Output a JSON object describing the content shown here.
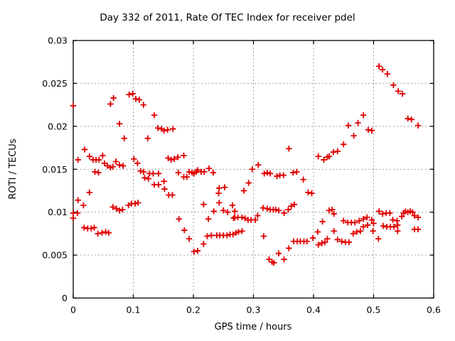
{
  "chart_data": {
    "type": "scatter",
    "title": "Day 332 of 2011, Rate Of TEC Index for receiver pdel",
    "xlabel": "GPS time / hours",
    "ylabel": "ROTI / TECUs",
    "xlim": [
      0,
      0.6
    ],
    "ylim": [
      0,
      0.03
    ],
    "x_ticks": [
      0,
      0.1,
      0.2,
      0.3,
      0.4,
      0.5,
      0.6
    ],
    "x_tick_labels": [
      "0",
      "0.1",
      "0.2",
      "0.3",
      "0.4",
      "0.5",
      "0.6"
    ],
    "y_ticks": [
      0,
      0.005,
      0.01,
      0.015,
      0.02,
      0.025,
      0.03
    ],
    "y_tick_labels": [
      "0",
      "0.005",
      "0.01",
      "0.015",
      "0.02",
      "0.025",
      "0.03"
    ],
    "grid": true,
    "legend": "none",
    "marker": "plus",
    "colors": {
      "marker": "#e00000",
      "grid": "#a0a0a0",
      "axis": "#000000",
      "background": "#ffffff"
    },
    "series": [
      {
        "name": "ROTI",
        "points": [
          [
            0.0,
            0.0224
          ],
          [
            0.0,
            0.0099
          ],
          [
            0.0,
            0.0093
          ],
          [
            0.007,
            0.0099
          ],
          [
            0.008,
            0.0114
          ],
          [
            0.008,
            0.0161
          ],
          [
            0.017,
            0.0108
          ],
          [
            0.019,
            0.0173
          ],
          [
            0.018,
            0.0082
          ],
          [
            0.024,
            0.0081
          ],
          [
            0.027,
            0.0123
          ],
          [
            0.027,
            0.0165
          ],
          [
            0.03,
            0.0081
          ],
          [
            0.035,
            0.0082
          ],
          [
            0.033,
            0.0161
          ],
          [
            0.036,
            0.0147
          ],
          [
            0.038,
            0.0161
          ],
          [
            0.042,
            0.0146
          ],
          [
            0.043,
            0.0161
          ],
          [
            0.041,
            0.0075
          ],
          [
            0.049,
            0.0166
          ],
          [
            0.048,
            0.0076
          ],
          [
            0.052,
            0.0157
          ],
          [
            0.054,
            0.0077
          ],
          [
            0.057,
            0.0154
          ],
          [
            0.059,
            0.0076
          ],
          [
            0.062,
            0.0152
          ],
          [
            0.062,
            0.0226
          ],
          [
            0.066,
            0.0153
          ],
          [
            0.067,
            0.0233
          ],
          [
            0.066,
            0.0106
          ],
          [
            0.071,
            0.0159
          ],
          [
            0.072,
            0.0104
          ],
          [
            0.077,
            0.0155
          ],
          [
            0.077,
            0.0203
          ],
          [
            0.077,
            0.0102
          ],
          [
            0.082,
            0.0103
          ],
          [
            0.083,
            0.0154
          ],
          [
            0.085,
            0.0186
          ],
          [
            0.092,
            0.0108
          ],
          [
            0.097,
            0.011
          ],
          [
            0.103,
            0.011
          ],
          [
            0.108,
            0.0111
          ],
          [
            0.093,
            0.0237
          ],
          [
            0.099,
            0.0238
          ],
          [
            0.104,
            0.0232
          ],
          [
            0.11,
            0.0231
          ],
          [
            0.101,
            0.0162
          ],
          [
            0.107,
            0.0157
          ],
          [
            0.112,
            0.0148
          ],
          [
            0.117,
            0.0147
          ],
          [
            0.117,
            0.0225
          ],
          [
            0.119,
            0.014
          ],
          [
            0.124,
            0.0186
          ],
          [
            0.125,
            0.0139
          ],
          [
            0.127,
            0.0145
          ],
          [
            0.133,
            0.0145
          ],
          [
            0.135,
            0.0132
          ],
          [
            0.135,
            0.0213
          ],
          [
            0.141,
            0.0198
          ],
          [
            0.142,
            0.0145
          ],
          [
            0.142,
            0.0132
          ],
          [
            0.147,
            0.0197
          ],
          [
            0.151,
            0.0195
          ],
          [
            0.151,
            0.0136
          ],
          [
            0.152,
            0.0127
          ],
          [
            0.157,
            0.0196
          ],
          [
            0.158,
            0.0163
          ],
          [
            0.159,
            0.012
          ],
          [
            0.163,
            0.0161
          ],
          [
            0.165,
            0.012
          ],
          [
            0.166,
            0.0197
          ],
          [
            0.168,
            0.0162
          ],
          [
            0.174,
            0.0164
          ],
          [
            0.175,
            0.0146
          ],
          [
            0.176,
            0.0092
          ],
          [
            0.184,
            0.0166
          ],
          [
            0.184,
            0.0141
          ],
          [
            0.185,
            0.0079
          ],
          [
            0.189,
            0.0141
          ],
          [
            0.193,
            0.0147
          ],
          [
            0.193,
            0.0069
          ],
          [
            0.198,
            0.0146
          ],
          [
            0.201,
            0.0145
          ],
          [
            0.201,
            0.0054
          ],
          [
            0.205,
            0.0147
          ],
          [
            0.207,
            0.0149
          ],
          [
            0.207,
            0.0055
          ],
          [
            0.213,
            0.0147
          ],
          [
            0.217,
            0.0063
          ],
          [
            0.217,
            0.0109
          ],
          [
            0.218,
            0.0147
          ],
          [
            0.223,
            0.0072
          ],
          [
            0.225,
            0.0092
          ],
          [
            0.226,
            0.0151
          ],
          [
            0.23,
            0.0073
          ],
          [
            0.233,
            0.0146
          ],
          [
            0.234,
            0.0101
          ],
          [
            0.239,
            0.0073
          ],
          [
            0.244,
            0.0073
          ],
          [
            0.242,
            0.0122
          ],
          [
            0.243,
            0.0128
          ],
          [
            0.243,
            0.0111
          ],
          [
            0.25,
            0.0073
          ],
          [
            0.25,
            0.0102
          ],
          [
            0.252,
            0.0129
          ],
          [
            0.256,
            0.0073
          ],
          [
            0.257,
            0.01
          ],
          [
            0.261,
            0.0074
          ],
          [
            0.265,
            0.0108
          ],
          [
            0.266,
            0.0074
          ],
          [
            0.267,
            0.0093
          ],
          [
            0.269,
            0.0101
          ],
          [
            0.269,
            0.0094
          ],
          [
            0.271,
            0.0076
          ],
          [
            0.274,
            0.0094
          ],
          [
            0.275,
            0.0077
          ],
          [
            0.281,
            0.0094
          ],
          [
            0.281,
            0.0078
          ],
          [
            0.284,
            0.0125
          ],
          [
            0.286,
            0.0093
          ],
          [
            0.291,
            0.0091
          ],
          [
            0.292,
            0.0134
          ],
          [
            0.296,
            0.0091
          ],
          [
            0.298,
            0.015
          ],
          [
            0.303,
            0.0091
          ],
          [
            0.307,
            0.0096
          ],
          [
            0.308,
            0.0155
          ],
          [
            0.316,
            0.0105
          ],
          [
            0.317,
            0.0072
          ],
          [
            0.318,
            0.0145
          ],
          [
            0.323,
            0.0146
          ],
          [
            0.323,
            0.0104
          ],
          [
            0.326,
            0.0045
          ],
          [
            0.328,
            0.0145
          ],
          [
            0.328,
            0.0103
          ],
          [
            0.331,
            0.0042
          ],
          [
            0.333,
            0.0103
          ],
          [
            0.334,
            0.0041
          ],
          [
            0.337,
            0.0103
          ],
          [
            0.339,
            0.0142
          ],
          [
            0.342,
            0.0102
          ],
          [
            0.342,
            0.0052
          ],
          [
            0.344,
            0.0143
          ],
          [
            0.35,
            0.0143
          ],
          [
            0.351,
            0.0045
          ],
          [
            0.351,
            0.0099
          ],
          [
            0.358,
            0.0103
          ],
          [
            0.359,
            0.0174
          ],
          [
            0.359,
            0.0058
          ],
          [
            0.363,
            0.0107
          ],
          [
            0.366,
            0.0146
          ],
          [
            0.367,
            0.0066
          ],
          [
            0.368,
            0.0109
          ],
          [
            0.372,
            0.0147
          ],
          [
            0.373,
            0.0066
          ],
          [
            0.378,
            0.0066
          ],
          [
            0.383,
            0.0138
          ],
          [
            0.384,
            0.0066
          ],
          [
            0.389,
            0.0066
          ],
          [
            0.391,
            0.0123
          ],
          [
            0.397,
            0.0122
          ],
          [
            0.399,
            0.007
          ],
          [
            0.407,
            0.0077
          ],
          [
            0.408,
            0.0165
          ],
          [
            0.408,
            0.0062
          ],
          [
            0.414,
            0.0064
          ],
          [
            0.415,
            0.0089
          ],
          [
            0.417,
            0.0161
          ],
          [
            0.419,
            0.0065
          ],
          [
            0.423,
            0.0164
          ],
          [
            0.423,
            0.0069
          ],
          [
            0.426,
            0.0165
          ],
          [
            0.426,
            0.0102
          ],
          [
            0.431,
            0.0103
          ],
          [
            0.433,
            0.017
          ],
          [
            0.434,
            0.0098
          ],
          [
            0.434,
            0.0078
          ],
          [
            0.44,
            0.0171
          ],
          [
            0.44,
            0.0068
          ],
          [
            0.447,
            0.0066
          ],
          [
            0.45,
            0.0179
          ],
          [
            0.45,
            0.009
          ],
          [
            0.453,
            0.0065
          ],
          [
            0.457,
            0.0088
          ],
          [
            0.458,
            0.0201
          ],
          [
            0.459,
            0.0065
          ],
          [
            0.463,
            0.0088
          ],
          [
            0.466,
            0.0075
          ],
          [
            0.467,
            0.0189
          ],
          [
            0.469,
            0.0088
          ],
          [
            0.472,
            0.0077
          ],
          [
            0.474,
            0.0204
          ],
          [
            0.476,
            0.009
          ],
          [
            0.478,
            0.0078
          ],
          [
            0.483,
            0.0213
          ],
          [
            0.483,
            0.0092
          ],
          [
            0.483,
            0.0083
          ],
          [
            0.489,
            0.0094
          ],
          [
            0.49,
            0.0085
          ],
          [
            0.491,
            0.0196
          ],
          [
            0.497,
            0.0195
          ],
          [
            0.497,
            0.0091
          ],
          [
            0.499,
            0.0078
          ],
          [
            0.5,
            0.0087
          ],
          [
            0.508,
            0.0069
          ],
          [
            0.509,
            0.027
          ],
          [
            0.509,
            0.0101
          ],
          [
            0.515,
            0.0266
          ],
          [
            0.515,
            0.0098
          ],
          [
            0.516,
            0.0084
          ],
          [
            0.521,
            0.0099
          ],
          [
            0.522,
            0.0083
          ],
          [
            0.523,
            0.0261
          ],
          [
            0.527,
            0.0099
          ],
          [
            0.528,
            0.0083
          ],
          [
            0.532,
            0.0091
          ],
          [
            0.533,
            0.0248
          ],
          [
            0.534,
            0.0083
          ],
          [
            0.539,
            0.009
          ],
          [
            0.54,
            0.0085
          ],
          [
            0.54,
            0.0078
          ],
          [
            0.541,
            0.0241
          ],
          [
            0.547,
            0.0095
          ],
          [
            0.548,
            0.0238
          ],
          [
            0.55,
            0.0099
          ],
          [
            0.553,
            0.0101
          ],
          [
            0.557,
            0.0209
          ],
          [
            0.557,
            0.01
          ],
          [
            0.561,
            0.0101
          ],
          [
            0.563,
            0.0208
          ],
          [
            0.565,
            0.01
          ],
          [
            0.568,
            0.0096
          ],
          [
            0.568,
            0.008
          ],
          [
            0.574,
            0.0201
          ],
          [
            0.574,
            0.0094
          ],
          [
            0.574,
            0.008
          ]
        ]
      }
    ]
  }
}
